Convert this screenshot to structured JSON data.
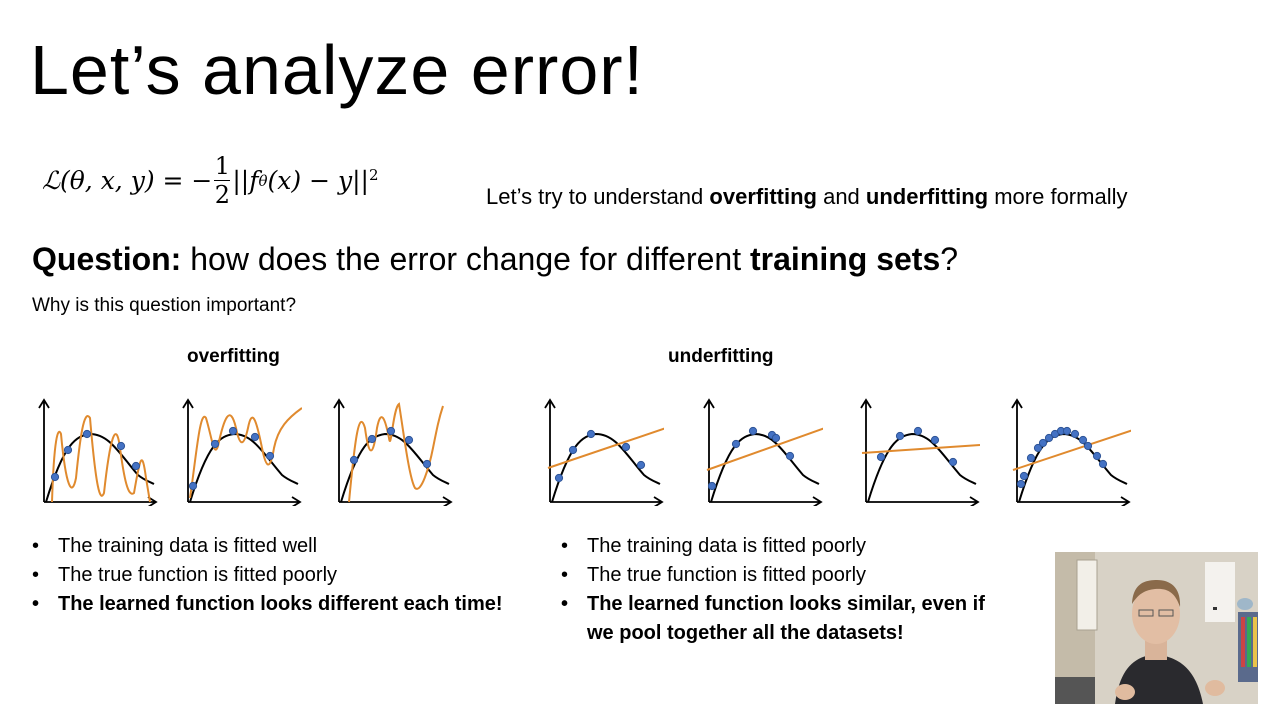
{
  "slide": {
    "title": "Let’s analyze error!",
    "formula": {
      "lhs": "ℒ(θ, x, y) = −",
      "frac_num": "1",
      "frac_den": "2",
      "rhs_pre": "||f",
      "rhs_sub": "θ",
      "rhs_post": "(x) − y||",
      "rhs_sup": "2"
    },
    "subtitle": {
      "pre": "Let’s try to understand ",
      "b1": "overfitting",
      "mid": " and ",
      "b2": "underfitting",
      "post": " more formally"
    },
    "question": {
      "label": "Question:",
      "text": " how does the error change for different ",
      "bold": "training sets",
      "end": "?"
    },
    "why": "Why is this question important?",
    "overfitting": {
      "label": "overfitting",
      "bullets": [
        "The training data is fitted well",
        "The true function is fitted poorly",
        "The learned function looks different each time!"
      ]
    },
    "underfitting": {
      "label": "underfitting",
      "bullets": [
        "The training data is fitted poorly",
        "The true function is fitted poorly",
        "The learned function looks similar, even if we pool together all the datasets!"
      ]
    }
  },
  "colors": {
    "data_point": "#4472c4",
    "learned_curve": "#e08a2e",
    "true_curve": "#000000"
  }
}
